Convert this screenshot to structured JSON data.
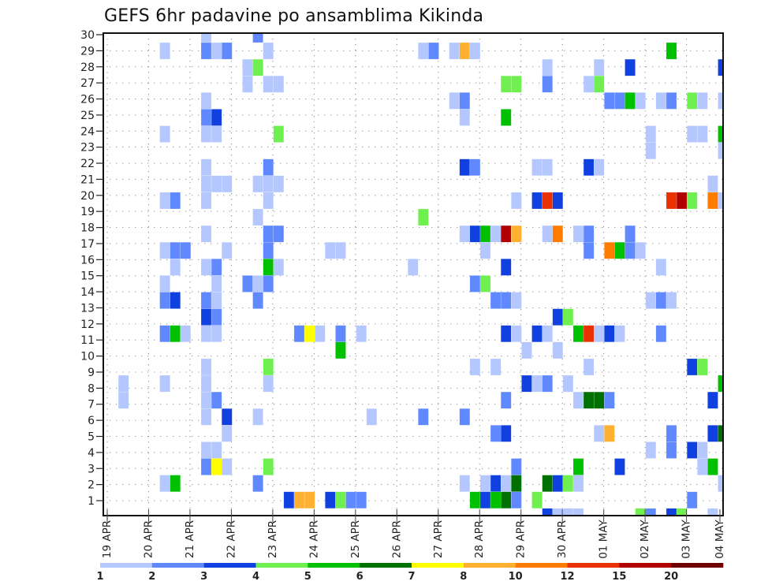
{
  "chart_data": {
    "type": "heatmap",
    "title": "GEFS 6hr padavine po ansamblima Kikinda",
    "xlabel": "",
    "ylabel": "",
    "x_ticks": [
      "19 APR",
      "20 APR",
      "21 APR",
      "22 APR",
      "23 APR",
      "24 APR",
      "25 APR",
      "26 APR",
      "27 APR",
      "28 APR",
      "29 APR",
      "30 APR",
      "01 MAY",
      "02 MAY",
      "03 MAY",
      "04 MAY"
    ],
    "y_ticks": [
      "1",
      "2",
      "3",
      "4",
      "5",
      "6",
      "7",
      "8",
      "9",
      "10",
      "11",
      "12",
      "13",
      "14",
      "15",
      "16",
      "17",
      "18",
      "19",
      "20",
      "21",
      "22",
      "23",
      "24",
      "25",
      "26",
      "27",
      "28",
      "29",
      "30"
    ],
    "x_range": [
      0,
      60
    ],
    "y_range": [
      0,
      30
    ],
    "grid": true,
    "colorbar": {
      "position": "bottom",
      "ticks": [
        1,
        2,
        3,
        4,
        5,
        6,
        7,
        8,
        10,
        12,
        15,
        20
      ],
      "tick_labels": [
        "1",
        "2",
        "3",
        "4",
        "5",
        "6",
        "7",
        "8",
        "10",
        "12",
        "15",
        "20"
      ],
      "colors": [
        "#b4c8ff",
        "#6088ff",
        "#1040e0",
        "#70f050",
        "#00c000",
        "#007000",
        "#ffff00",
        "#ffb030",
        "#ff7c00",
        "#e83000",
        "#b00000",
        "#700000"
      ]
    },
    "cell_fields": [
      "time_step_6h",
      "member",
      "value"
    ],
    "cells": [
      [
        9,
        30,
        1.5
      ],
      [
        14,
        30,
        2.5
      ],
      [
        5,
        29,
        1.5
      ],
      [
        9,
        29,
        2.5
      ],
      [
        10,
        29,
        1.5
      ],
      [
        11,
        29,
        2.5
      ],
      [
        15,
        29,
        1.5
      ],
      [
        30,
        29,
        1.5
      ],
      [
        31,
        29,
        2.5
      ],
      [
        33,
        29,
        1.5
      ],
      [
        34,
        29,
        9
      ],
      [
        35,
        29,
        1.5
      ],
      [
        54,
        29,
        5.5
      ],
      [
        13,
        28,
        1.5
      ],
      [
        14,
        28,
        4.5
      ],
      [
        42,
        28,
        1.5
      ],
      [
        47,
        28,
        1.5
      ],
      [
        50,
        28,
        3.5
      ],
      [
        59,
        28,
        3.5
      ],
      [
        13,
        27,
        1.5
      ],
      [
        15,
        27,
        1.5
      ],
      [
        16,
        27,
        1.5
      ],
      [
        38,
        27,
        4.5
      ],
      [
        39,
        27,
        4.5
      ],
      [
        42,
        27,
        2.5
      ],
      [
        46,
        27,
        1.5
      ],
      [
        47,
        27,
        4.5
      ],
      [
        9,
        26,
        1.5
      ],
      [
        33,
        26,
        1.5
      ],
      [
        34,
        26,
        2.5
      ],
      [
        48,
        26,
        2.5
      ],
      [
        49,
        26,
        2.5
      ],
      [
        50,
        26,
        5.5
      ],
      [
        51,
        26,
        1.5
      ],
      [
        53,
        26,
        1.5
      ],
      [
        54,
        26,
        2.5
      ],
      [
        56,
        26,
        4.5
      ],
      [
        57,
        26,
        1.5
      ],
      [
        59,
        26,
        1.5
      ],
      [
        9,
        25,
        2.5
      ],
      [
        10,
        25,
        3.5
      ],
      [
        34,
        25,
        1.5
      ],
      [
        38,
        25,
        5.5
      ],
      [
        5,
        24,
        1.5
      ],
      [
        9,
        24,
        1.5
      ],
      [
        10,
        24,
        1.5
      ],
      [
        16,
        24,
        4.5
      ],
      [
        52,
        24,
        1.5
      ],
      [
        56,
        24,
        1.5
      ],
      [
        57,
        24,
        1.5
      ],
      [
        59,
        24,
        5.5
      ],
      [
        52,
        23,
        1.5
      ],
      [
        59,
        23,
        1.5
      ],
      [
        9,
        22,
        1.5
      ],
      [
        15,
        22,
        2.5
      ],
      [
        34,
        22,
        3.5
      ],
      [
        35,
        22,
        2.5
      ],
      [
        41,
        22,
        1.5
      ],
      [
        42,
        22,
        1.5
      ],
      [
        46,
        22,
        3.5
      ],
      [
        47,
        22,
        1.5
      ],
      [
        9,
        21,
        1.5
      ],
      [
        10,
        21,
        1.5
      ],
      [
        11,
        21,
        1.5
      ],
      [
        14,
        21,
        1.5
      ],
      [
        15,
        21,
        1.5
      ],
      [
        16,
        21,
        1.5
      ],
      [
        58,
        21,
        1.5
      ],
      [
        5,
        20,
        1.5
      ],
      [
        6,
        20,
        2.5
      ],
      [
        9,
        20,
        1.5
      ],
      [
        15,
        20,
        1.5
      ],
      [
        39,
        20,
        1.5
      ],
      [
        41,
        20,
        3.5
      ],
      [
        42,
        20,
        13.5
      ],
      [
        43,
        20,
        3.5
      ],
      [
        54,
        20,
        13.5
      ],
      [
        55,
        20,
        17.5
      ],
      [
        56,
        20,
        4.5
      ],
      [
        58,
        20,
        11
      ],
      [
        59,
        20,
        1.5
      ],
      [
        14,
        19,
        1.5
      ],
      [
        30,
        19,
        4.5
      ],
      [
        9,
        18,
        1.5
      ],
      [
        15,
        18,
        2.5
      ],
      [
        16,
        18,
        2.5
      ],
      [
        34,
        18,
        1.5
      ],
      [
        35,
        18,
        3.5
      ],
      [
        36,
        18,
        5.5
      ],
      [
        37,
        18,
        1.5
      ],
      [
        38,
        18,
        17.5
      ],
      [
        39,
        18,
        9
      ],
      [
        42,
        18,
        1.5
      ],
      [
        43,
        18,
        11
      ],
      [
        45,
        18,
        1.5
      ],
      [
        46,
        18,
        2.5
      ],
      [
        50,
        18,
        2.5
      ],
      [
        5,
        17,
        1.5
      ],
      [
        6,
        17,
        2.5
      ],
      [
        7,
        17,
        2.5
      ],
      [
        11,
        17,
        1.5
      ],
      [
        15,
        17,
        2.5
      ],
      [
        21,
        17,
        1.5
      ],
      [
        22,
        17,
        1.5
      ],
      [
        36,
        17,
        1.5
      ],
      [
        46,
        17,
        2.5
      ],
      [
        48,
        17,
        11
      ],
      [
        49,
        17,
        5.5
      ],
      [
        50,
        17,
        2.5
      ],
      [
        51,
        17,
        1.5
      ],
      [
        6,
        16,
        1.5
      ],
      [
        9,
        16,
        1.5
      ],
      [
        10,
        16,
        2.5
      ],
      [
        15,
        16,
        5.5
      ],
      [
        16,
        16,
        1.5
      ],
      [
        29,
        16,
        1.5
      ],
      [
        38,
        16,
        3.5
      ],
      [
        53,
        16,
        1.5
      ],
      [
        5,
        15,
        1.5
      ],
      [
        10,
        15,
        1.5
      ],
      [
        13,
        15,
        2.5
      ],
      [
        14,
        15,
        1.5
      ],
      [
        15,
        15,
        2.5
      ],
      [
        35,
        15,
        2.5
      ],
      [
        36,
        15,
        4.5
      ],
      [
        5,
        14,
        2.5
      ],
      [
        6,
        14,
        3.5
      ],
      [
        9,
        14,
        2.5
      ],
      [
        10,
        14,
        1.5
      ],
      [
        14,
        14,
        2.5
      ],
      [
        37,
        14,
        2.5
      ],
      [
        38,
        14,
        2.5
      ],
      [
        39,
        14,
        1.5
      ],
      [
        52,
        14,
        1.5
      ],
      [
        53,
        14,
        2.5
      ],
      [
        54,
        14,
        1.5
      ],
      [
        9,
        13,
        3.5
      ],
      [
        10,
        13,
        2.5
      ],
      [
        43,
        13,
        3.5
      ],
      [
        44,
        13,
        4.5
      ],
      [
        5,
        12,
        2.5
      ],
      [
        6,
        12,
        5.5
      ],
      [
        7,
        12,
        1.5
      ],
      [
        9,
        12,
        1.5
      ],
      [
        10,
        12,
        1.5
      ],
      [
        18,
        12,
        2.5
      ],
      [
        19,
        12,
        7.5
      ],
      [
        20,
        12,
        1.5
      ],
      [
        22,
        12,
        2.5
      ],
      [
        24,
        12,
        1.5
      ],
      [
        38,
        12,
        3.5
      ],
      [
        39,
        12,
        1.5
      ],
      [
        41,
        12,
        3.5
      ],
      [
        42,
        12,
        1.5
      ],
      [
        45,
        12,
        5.5
      ],
      [
        46,
        12,
        13.5
      ],
      [
        47,
        12,
        1.5
      ],
      [
        48,
        12,
        3.5
      ],
      [
        49,
        12,
        1.5
      ],
      [
        53,
        12,
        2.5
      ],
      [
        22,
        11,
        5.5
      ],
      [
        40,
        11,
        1.5
      ],
      [
        43,
        11,
        1.5
      ],
      [
        9,
        10,
        1.5
      ],
      [
        15,
        10,
        4.5
      ],
      [
        35,
        10,
        1.5
      ],
      [
        37,
        10,
        1.5
      ],
      [
        46,
        10,
        1.5
      ],
      [
        56,
        10,
        3.5
      ],
      [
        57,
        10,
        4.5
      ],
      [
        1,
        9,
        1.5
      ],
      [
        5,
        9,
        1.5
      ],
      [
        9,
        9,
        1.5
      ],
      [
        15,
        9,
        1.5
      ],
      [
        40,
        9,
        3.5
      ],
      [
        41,
        9,
        1.5
      ],
      [
        42,
        9,
        2.5
      ],
      [
        44,
        9,
        1.5
      ],
      [
        59,
        9,
        5.5
      ],
      [
        1,
        8,
        1.5
      ],
      [
        9,
        8,
        1.5
      ],
      [
        10,
        8,
        2.5
      ],
      [
        38,
        8,
        2.5
      ],
      [
        45,
        8,
        1.5
      ],
      [
        46,
        8,
        6.5
      ],
      [
        47,
        8,
        6.5
      ],
      [
        48,
        8,
        2.5
      ],
      [
        58,
        8,
        3.5
      ],
      [
        9,
        7,
        1.5
      ],
      [
        11,
        7,
        3.5
      ],
      [
        14,
        7,
        1.5
      ],
      [
        25,
        7,
        1.5
      ],
      [
        30,
        7,
        2.5
      ],
      [
        34,
        7,
        2.5
      ],
      [
        11,
        6,
        1.5
      ],
      [
        37,
        6,
        2.5
      ],
      [
        38,
        6,
        3.5
      ],
      [
        47,
        6,
        1.5
      ],
      [
        48,
        6,
        9
      ],
      [
        54,
        6,
        2.5
      ],
      [
        58,
        6,
        3.5
      ],
      [
        59,
        6,
        6.5
      ],
      [
        9,
        5,
        1.5
      ],
      [
        10,
        5,
        1.5
      ],
      [
        52,
        5,
        1.5
      ],
      [
        54,
        5,
        2.5
      ],
      [
        56,
        5,
        3.5
      ],
      [
        57,
        5,
        1.5
      ],
      [
        9,
        4,
        2.5
      ],
      [
        10,
        4,
        7.5
      ],
      [
        11,
        4,
        1.5
      ],
      [
        15,
        4,
        4.5
      ],
      [
        39,
        4,
        2.5
      ],
      [
        45,
        4,
        5.5
      ],
      [
        49,
        4,
        3.5
      ],
      [
        57,
        4,
        1.5
      ],
      [
        58,
        4,
        5.5
      ],
      [
        5,
        3,
        1.5
      ],
      [
        6,
        3,
        5.5
      ],
      [
        14,
        3,
        2.5
      ],
      [
        34,
        3,
        1.5
      ],
      [
        36,
        3,
        1.5
      ],
      [
        37,
        3,
        3.5
      ],
      [
        38,
        3,
        1.5
      ],
      [
        39,
        3,
        6.5
      ],
      [
        42,
        3,
        6.5
      ],
      [
        43,
        3,
        3.5
      ],
      [
        44,
        3,
        4.5
      ],
      [
        45,
        3,
        1.5
      ],
      [
        59,
        3,
        1.5
      ],
      [
        17,
        2,
        3.5
      ],
      [
        18,
        2,
        9
      ],
      [
        19,
        2,
        9
      ],
      [
        21,
        2,
        3.5
      ],
      [
        22,
        2,
        4.5
      ],
      [
        23,
        2,
        2.5
      ],
      [
        24,
        2,
        2.5
      ],
      [
        35,
        2,
        5.5
      ],
      [
        36,
        2,
        3.5
      ],
      [
        37,
        2,
        5.5
      ],
      [
        38,
        2,
        6.5
      ],
      [
        39,
        2,
        2.5
      ],
      [
        41,
        2,
        4.5
      ],
      [
        56,
        2,
        2.5
      ],
      [
        42,
        1,
        3.5
      ],
      [
        43,
        1,
        1.5
      ],
      [
        44,
        1,
        1.5
      ],
      [
        45,
        1,
        1.5
      ],
      [
        51,
        1,
        4.5
      ],
      [
        52,
        1,
        2.5
      ],
      [
        54,
        1,
        3.5
      ],
      [
        55,
        1,
        4.5
      ],
      [
        58,
        1,
        1.5
      ]
    ]
  }
}
